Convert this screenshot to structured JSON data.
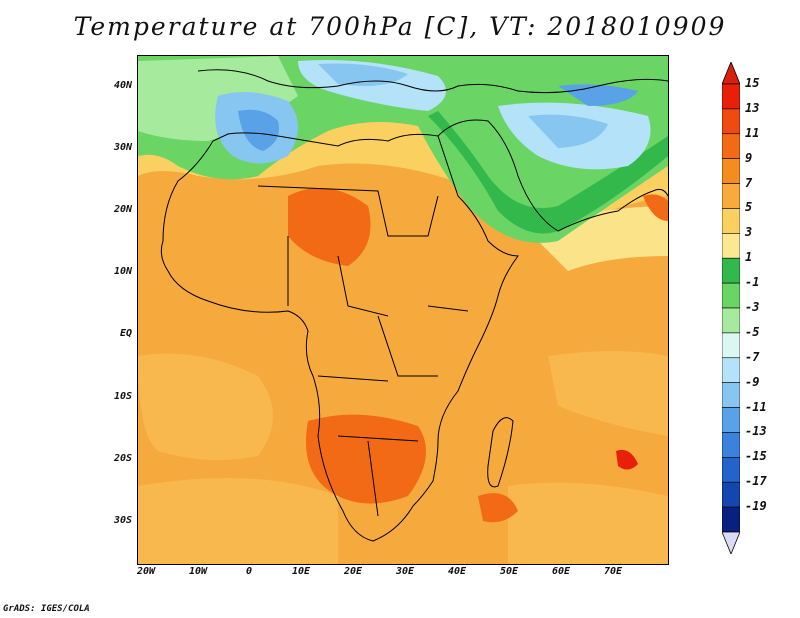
{
  "title": "Temperature at 700hPa [C], VT: 2018010909",
  "credit": "GrADS: IGES/COLA",
  "lat_labels": [
    "40N",
    "30N",
    "20N",
    "10N",
    "EQ",
    "10S",
    "20S",
    "30S"
  ],
  "lon_labels": [
    "20W",
    "10W",
    "0",
    "10E",
    "20E",
    "30E",
    "40E",
    "50E",
    "60E",
    "70E"
  ],
  "colorbar": {
    "levels": [
      "15",
      "13",
      "11",
      "9",
      "7",
      "5",
      "3",
      "1",
      "-1",
      "-3",
      "-5",
      "-7",
      "-9",
      "-11",
      "-13",
      "-15",
      "-17",
      "-19"
    ],
    "colors": [
      "#e8200a",
      "#f04a10",
      "#f26a16",
      "#f58c20",
      "#f8aa3c",
      "#fad060",
      "#fbe892",
      "#33b84c",
      "#6ad465",
      "#a6ea9e",
      "#dcf6f2",
      "#b4e2f8",
      "#86c6f0",
      "#5aa2e8",
      "#3a82dc",
      "#2462cc",
      "#1446b0",
      "#0a2080"
    ],
    "top_arrow": "#d8200a",
    "bottom_arrow": "#dcdaf4"
  },
  "legend_placement": "right"
}
